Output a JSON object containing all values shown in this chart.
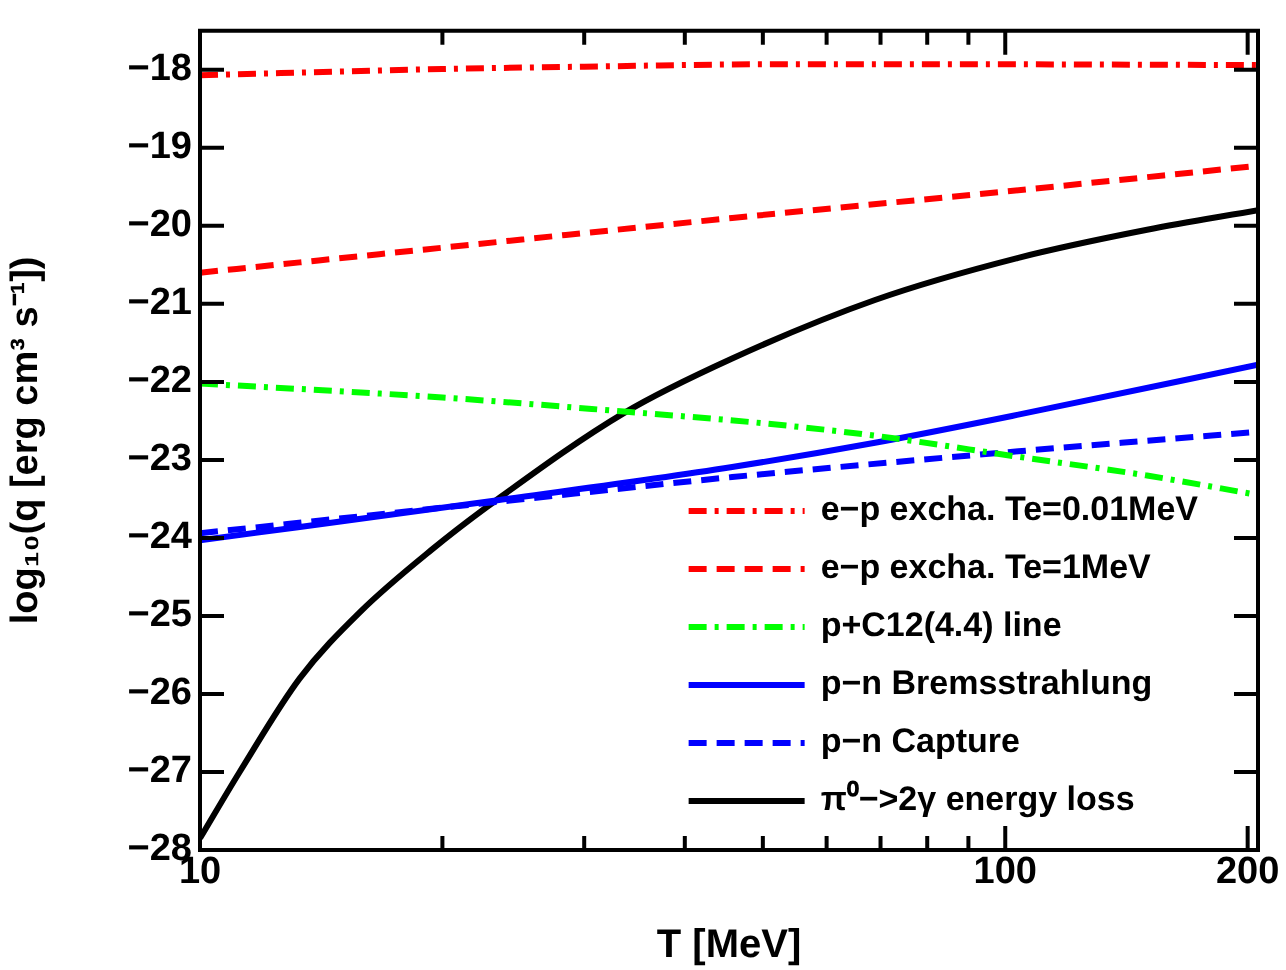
{
  "chart_data": {
    "type": "line",
    "xlabel": "T [MeV]",
    "ylabel": "log₁₀(q [erg cm³ s⁻¹])",
    "log": "x",
    "xlim": [
      10,
      206
    ],
    "ylim": [
      -28,
      -17.5
    ],
    "xticks": [
      10,
      {
        "value": 20,
        "label": null
      },
      {
        "value": 30,
        "label": null
      },
      {
        "value": 40,
        "label": null
      },
      {
        "value": 50,
        "label": null
      },
      {
        "value": 60,
        "label": null
      },
      {
        "value": 70,
        "label": null
      },
      {
        "value": 80,
        "label": null
      },
      {
        "value": 90,
        "label": null
      },
      100,
      200
    ],
    "yticks": [
      -28,
      -27,
      -26,
      -25,
      -24,
      -23,
      -22,
      -21,
      -20,
      -19,
      -18
    ],
    "grid": false,
    "legend": "bottom right",
    "marker": "none",
    "series": [
      {
        "name": "e−p excha. Te=0.01MeV",
        "color": "#ff0000",
        "line_style": "dashdot",
        "x": [
          10,
          20,
          30,
          50,
          100,
          206
        ],
        "values": [
          -18.07,
          -17.99,
          -17.96,
          -17.93,
          -17.93,
          -17.94
        ]
      },
      {
        "name": "e−p excha. Te=1MeV",
        "color": "#ff0000",
        "line_style": "dashed",
        "x": [
          10,
          20,
          45.8,
          100,
          206
        ],
        "values": [
          -20.6,
          -20.28,
          -19.9,
          -19.56,
          -19.23
        ]
      },
      {
        "name": "p+C12(4.4) line",
        "color": "#00ff00",
        "line_style": "dashdot",
        "x": [
          10,
          20,
          33.6,
          50,
          68.9,
          103.8,
          150,
          206
        ],
        "values": [
          -22.02,
          -22.2,
          -22.38,
          -22.53,
          -22.69,
          -22.96,
          -23.2,
          -23.45
        ]
      },
      {
        "name": "p−n Bremsstrahlung",
        "color": "#0000ff",
        "line_style": "solid",
        "x": [
          10,
          23.3,
          45.8,
          68.9,
          103.8,
          206
        ],
        "values": [
          -24.03,
          -23.52,
          -23.09,
          -22.78,
          -22.42,
          -21.78
        ]
      },
      {
        "name": "p−n Capture",
        "color": "#0000ff",
        "line_style": "dashed",
        "x": [
          10,
          23.3,
          45.8,
          103.8,
          206
        ],
        "values": [
          -23.94,
          -23.54,
          -23.22,
          -22.89,
          -22.64
        ]
      },
      {
        "name": "π⁰−>2γ energy loss",
        "color": "#000000",
        "line_style": "solid",
        "x": [
          10,
          11.2,
          13.3,
          15.8,
          19.4,
          23.3,
          33.6,
          45.8,
          68.9,
          103.8,
          150,
          206
        ],
        "values": [
          -27.85,
          -27.0,
          -25.8,
          -24.95,
          -24.15,
          -23.52,
          -22.4,
          -21.7,
          -20.95,
          -20.41,
          -20.05,
          -19.8
        ]
      }
    ]
  }
}
